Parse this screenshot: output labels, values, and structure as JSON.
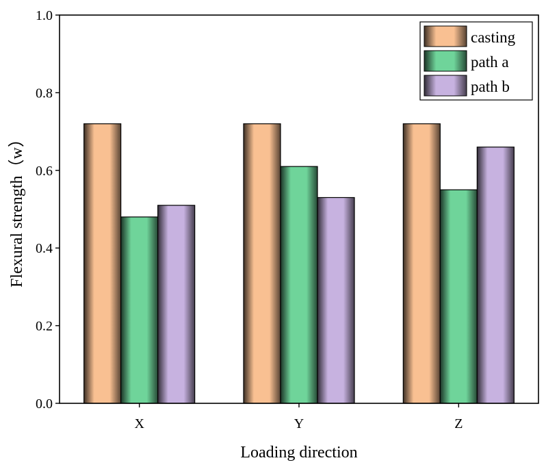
{
  "chart_data": {
    "type": "bar",
    "title": "",
    "xlabel": "Loading direction",
    "ylabel": "Flexural strength（w）",
    "categories": [
      "X",
      "Y",
      "Z"
    ],
    "ylim": [
      0,
      1.0
    ],
    "yticks": [
      "0.0",
      "0.2",
      "0.4",
      "0.6",
      "0.8",
      "1.0"
    ],
    "grid": false,
    "legend_position": "top-right",
    "series": [
      {
        "name": "casting",
        "values": [
          0.72,
          0.72,
          0.72
        ],
        "color": "#f9c092"
      },
      {
        "name": "path a",
        "values": [
          0.48,
          0.61,
          0.55
        ],
        "color": "#6fd49a"
      },
      {
        "name": "path b",
        "values": [
          0.51,
          0.53,
          0.66
        ],
        "color": "#c7b2e0"
      }
    ]
  }
}
